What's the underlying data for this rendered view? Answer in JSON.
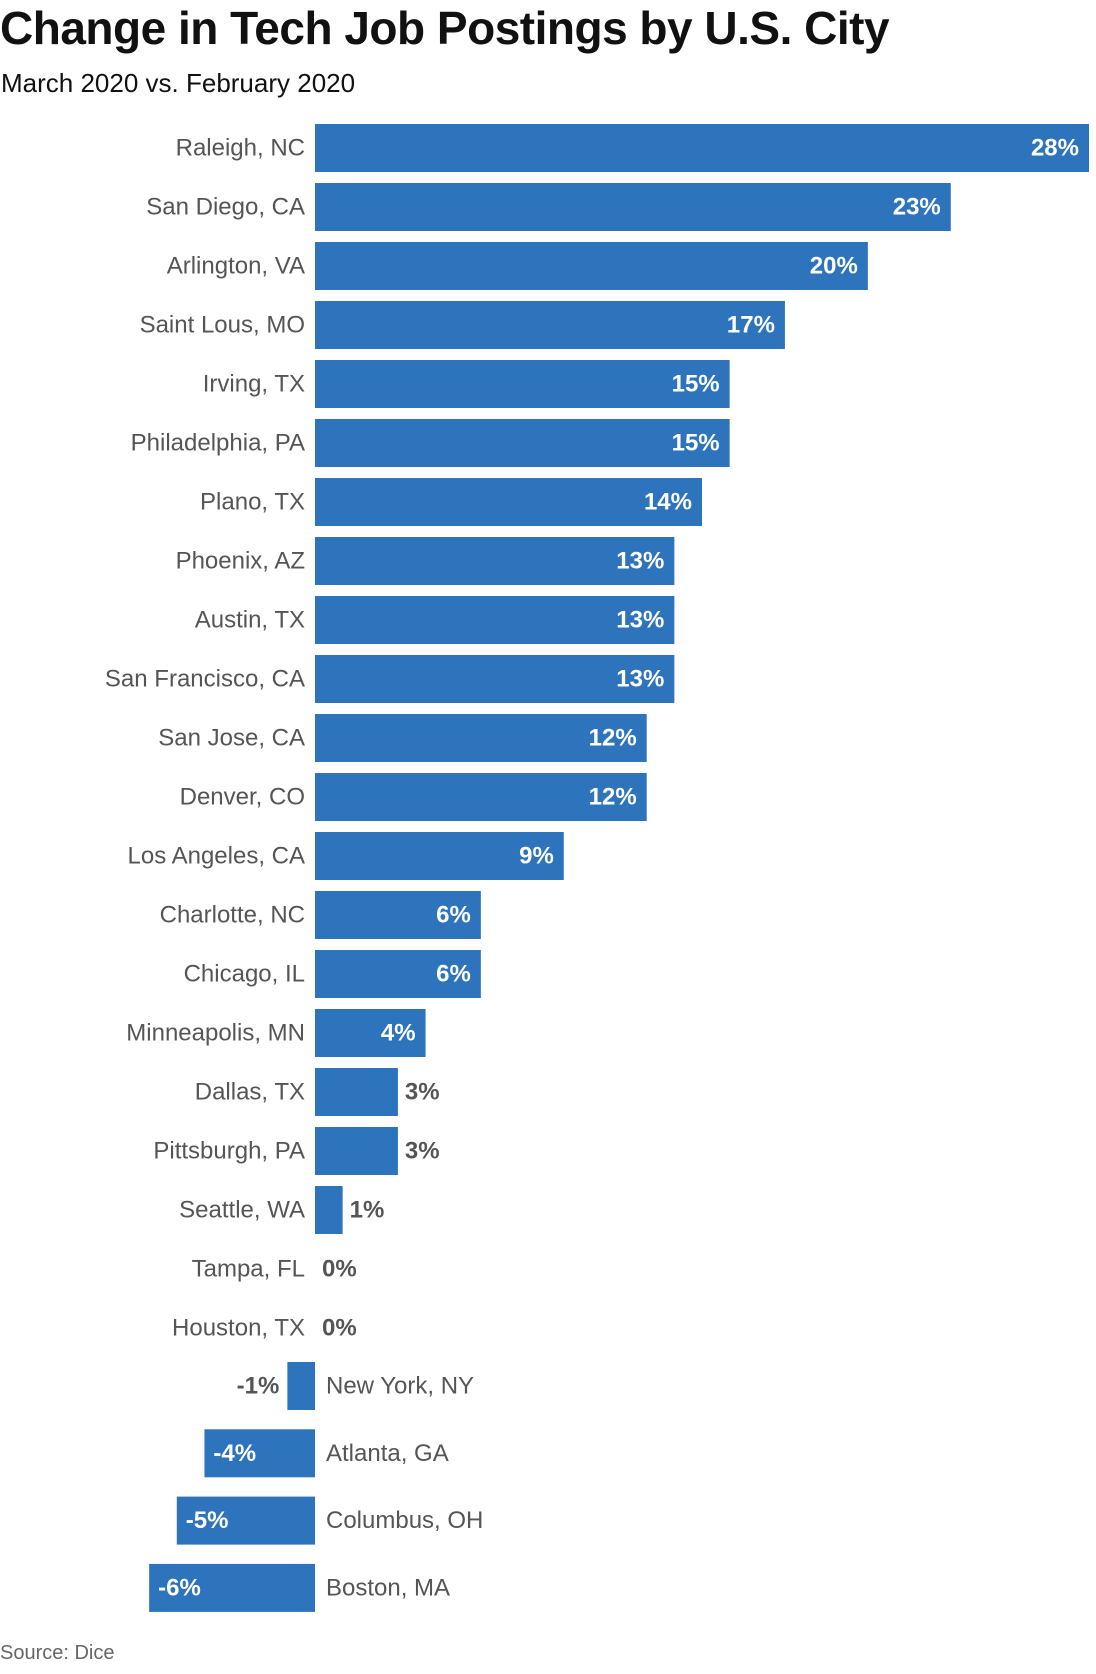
{
  "chart_data": {
    "type": "bar",
    "orientation": "horizontal",
    "title": "Change in Tech Job Postings by U.S. City",
    "subtitle": "March 2020 vs. February 2020",
    "source": "Source: Dice",
    "value_format": "percent",
    "categories": [
      "Raleigh, NC",
      "San Diego, CA",
      "Arlington, VA",
      "Saint Lous, MO",
      "Irving, TX",
      "Philadelphia, PA",
      "Plano, TX",
      "Phoenix, AZ",
      "Austin, TX",
      "San Francisco, CA",
      "San Jose, CA",
      "Denver, CO",
      "Los Angeles, CA",
      "Charlotte, NC",
      "Chicago, IL",
      "Minneapolis, MN",
      "Dallas, TX",
      "Pittsburgh, PA",
      "Seattle, WA",
      "Tampa, FL",
      "Houston, TX",
      "New York, NY",
      "Atlanta, GA",
      "Columbus, OH",
      "Boston, MA"
    ],
    "values": [
      28,
      23,
      20,
      17,
      15,
      15,
      14,
      13,
      13,
      13,
      12,
      12,
      9,
      6,
      6,
      4,
      3,
      3,
      1,
      0,
      0,
      -1,
      -4,
      -5,
      -6
    ],
    "xlim": [
      -6,
      28
    ],
    "grid": false,
    "legend": "none",
    "colors": {
      "bar": "#2e74bd",
      "label_inside": "#ffffff",
      "label_outside": "#555555",
      "category_text": "#555555"
    }
  }
}
